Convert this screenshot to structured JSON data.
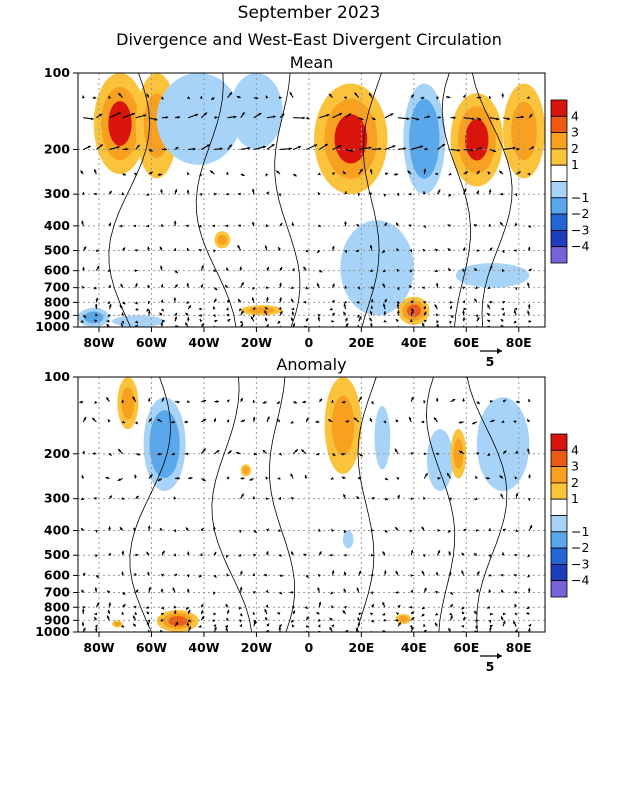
{
  "title": "September 2023",
  "subtitle": "Divergence and West-East Divergent Circulation",
  "chart_data": [
    {
      "type": "heatmap",
      "panel_title": "Mean",
      "x_tick_labels": [
        "80W",
        "60W",
        "40W",
        "20W",
        "0",
        "20E",
        "40E",
        "60E",
        "80E"
      ],
      "x_tick_values": [
        -80,
        -60,
        -40,
        -20,
        0,
        20,
        40,
        60,
        80
      ],
      "xlim": [
        -88,
        90
      ],
      "y_tick_labels": [
        "100",
        "200",
        "300",
        "400",
        "500",
        "600",
        "700",
        "800",
        "900",
        "1000"
      ],
      "y_tick_values": [
        100,
        200,
        300,
        400,
        500,
        600,
        700,
        800,
        900,
        1000
      ],
      "ylim": [
        1000,
        100
      ],
      "y_scale": "log",
      "vector_reference": "5",
      "fill_patches": [
        {
          "lon": -72,
          "p": 150,
          "lon_half_width": 10,
          "p_low": 100,
          "p_high": 250,
          "value": 3.5
        },
        {
          "lon": -58,
          "p": 150,
          "lon_half_width": 8,
          "p_low": 100,
          "p_high": 260,
          "value": 1.5
        },
        {
          "lon": -42,
          "p": 150,
          "lon_half_width": 16,
          "p_low": 100,
          "p_high": 230,
          "value": -1.5
        },
        {
          "lon": -20,
          "p": 140,
          "lon_half_width": 10,
          "p_low": 100,
          "p_high": 200,
          "value": -1.5
        },
        {
          "lon": 16,
          "p": 190,
          "lon_half_width": 14,
          "p_low": 110,
          "p_high": 300,
          "value": 4.0
        },
        {
          "lon": 44,
          "p": 190,
          "lon_half_width": 8,
          "p_low": 110,
          "p_high": 300,
          "value": -2.5
        },
        {
          "lon": 64,
          "p": 180,
          "lon_half_width": 10,
          "p_low": 120,
          "p_high": 280,
          "value": 3.5
        },
        {
          "lon": 82,
          "p": 160,
          "lon_half_width": 8,
          "p_low": 110,
          "p_high": 260,
          "value": 2.0
        },
        {
          "lon": 26,
          "p": 500,
          "lon_half_width": 14,
          "p_low": 380,
          "p_high": 900,
          "value": -1.5
        },
        {
          "lon": 40,
          "p": 880,
          "lon_half_width": 6,
          "p_low": 760,
          "p_high": 980,
          "value": 2.5
        },
        {
          "lon": -82,
          "p": 920,
          "lon_half_width": 6,
          "p_low": 840,
          "p_high": 1000,
          "value": -2.0
        },
        {
          "lon": -65,
          "p": 950,
          "lon_half_width": 10,
          "p_low": 900,
          "p_high": 1000,
          "value": -1.5
        },
        {
          "lon": -18,
          "p": 860,
          "lon_half_width": 8,
          "p_low": 820,
          "p_high": 900,
          "value": 1.5
        },
        {
          "lon": -33,
          "p": 450,
          "lon_half_width": 3,
          "p_low": 420,
          "p_high": 490,
          "value": 1.5
        },
        {
          "lon": 70,
          "p": 620,
          "lon_half_width": 14,
          "p_low": 560,
          "p_high": 700,
          "value": -1.5
        }
      ]
    },
    {
      "type": "heatmap",
      "panel_title": "Anomaly",
      "x_tick_labels": [
        "80W",
        "60W",
        "40W",
        "20W",
        "0",
        "20E",
        "40E",
        "60E",
        "80E"
      ],
      "x_tick_values": [
        -80,
        -60,
        -40,
        -20,
        0,
        20,
        40,
        60,
        80
      ],
      "xlim": [
        -88,
        90
      ],
      "y_tick_labels": [
        "100",
        "200",
        "300",
        "400",
        "500",
        "600",
        "700",
        "800",
        "900",
        "1000"
      ],
      "y_tick_values": [
        100,
        200,
        300,
        400,
        500,
        600,
        700,
        800,
        900,
        1000
      ],
      "ylim": [
        1000,
        100
      ],
      "y_scale": "log",
      "vector_reference": "5",
      "fill_patches": [
        {
          "lon": -69,
          "p": 130,
          "lon_half_width": 4,
          "p_low": 100,
          "p_high": 160,
          "value": 1.5
        },
        {
          "lon": -55,
          "p": 190,
          "lon_half_width": 8,
          "p_low": 120,
          "p_high": 280,
          "value": -2.5
        },
        {
          "lon": 13,
          "p": 150,
          "lon_half_width": 7,
          "p_low": 100,
          "p_high": 240,
          "value": 2.0
        },
        {
          "lon": 28,
          "p": 180,
          "lon_half_width": 3,
          "p_low": 130,
          "p_high": 230,
          "value": -1.5
        },
        {
          "lon": 50,
          "p": 210,
          "lon_half_width": 5,
          "p_low": 160,
          "p_high": 280,
          "value": -1.5
        },
        {
          "lon": 57,
          "p": 200,
          "lon_half_width": 3,
          "p_low": 160,
          "p_high": 250,
          "value": 1.5
        },
        {
          "lon": 74,
          "p": 150,
          "lon_half_width": 10,
          "p_low": 120,
          "p_high": 280,
          "value": -1.5
        },
        {
          "lon": -24,
          "p": 230,
          "lon_half_width": 2,
          "p_low": 220,
          "p_high": 245,
          "value": 1.5
        },
        {
          "lon": 15,
          "p": 430,
          "lon_half_width": 2,
          "p_low": 400,
          "p_high": 470,
          "value": -1.5
        },
        {
          "lon": -50,
          "p": 930,
          "lon_half_width": 8,
          "p_low": 820,
          "p_high": 1000,
          "value": 2.5
        },
        {
          "lon": 36,
          "p": 890,
          "lon_half_width": 3,
          "p_low": 850,
          "p_high": 930,
          "value": 1.5
        },
        {
          "lon": -73,
          "p": 930,
          "lon_half_width": 2,
          "p_low": 900,
          "p_high": 960,
          "value": 1.5
        }
      ]
    }
  ],
  "colorbar": {
    "labels": [
      "4",
      "3",
      "2",
      "1",
      "−1",
      "−2",
      "−3",
      "−4"
    ],
    "colors": [
      "#d9140c",
      "#ec5a14",
      "#f8a121",
      "#fbc33c",
      "#ffffff",
      "#a6d3f7",
      "#5aa8ec",
      "#2466d8",
      "#1e3fbd",
      "#7a62d8"
    ]
  }
}
